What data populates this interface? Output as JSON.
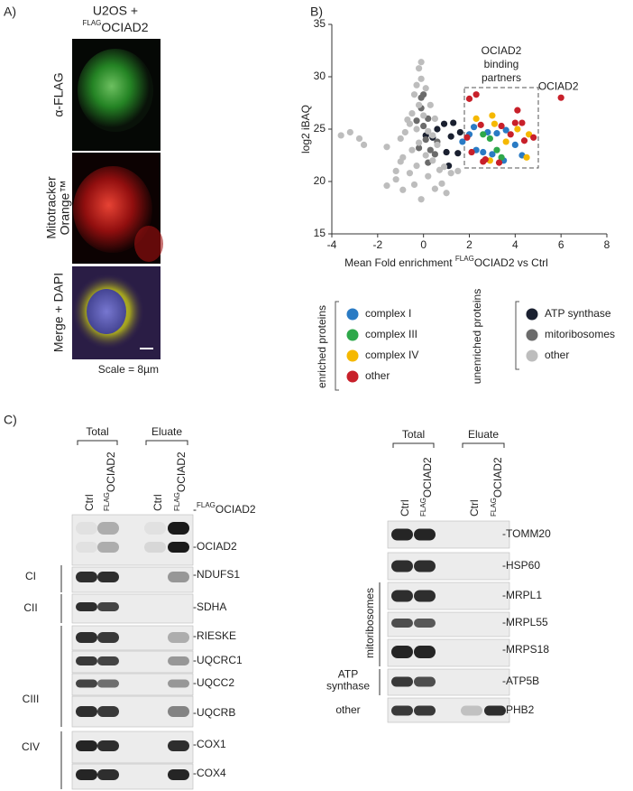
{
  "panel_a": {
    "label": "A)",
    "title_line1": "U2OS +",
    "title_sup": "FLAG",
    "title_main": "OCIAD2",
    "images": [
      [
        "α-FLAG"
      ],
      [
        "Mitotracker",
        "Orange™"
      ],
      [
        "Merge + DAPI"
      ]
    ],
    "scale": "Scale = 8µm"
  },
  "panel_b_label": "B)",
  "chart_data": {
    "type": "scatter",
    "ylabel": "log2 iBAQ",
    "xlabel": {
      "text": "Mean Fold enrichment ",
      "sup": "FLAG",
      "rest": "OCIAD2  vs Ctrl"
    },
    "xlim": [
      -4,
      8
    ],
    "ylim": [
      15,
      35
    ],
    "xticks": [
      -4,
      -2,
      0,
      2,
      4,
      6,
      8
    ],
    "yticks": [
      15,
      20,
      25,
      30,
      35
    ],
    "grid": false,
    "box_label": [
      "OCIAD2",
      "binding",
      "partners"
    ],
    "point_label": "OCIAD2",
    "series": [
      {
        "name": "complex I",
        "group": "enriched proteins",
        "color": "#2a7bc4",
        "x": [
          2.0,
          2.3,
          2.6,
          3.0,
          3.5,
          2.8,
          3.2,
          4.0,
          4.3,
          1.7,
          3.6,
          2.2
        ],
        "values": [
          24.5,
          23.0,
          22.8,
          22.6,
          22.0,
          24.7,
          24.6,
          23.5,
          22.5,
          23.8,
          24.9,
          25.2
        ]
      },
      {
        "name": "complex III",
        "group": "enriched proteins",
        "color": "#2ea84a",
        "x": [
          2.6,
          3.2,
          2.9,
          3.4
        ],
        "values": [
          24.5,
          23.0,
          24.1,
          22.3
        ]
      },
      {
        "name": "complex IV",
        "group": "enriched proteins",
        "color": "#f5b800",
        "x": [
          2.3,
          3.1,
          3.6,
          4.1,
          4.6,
          2.9,
          4.5,
          3.0
        ],
        "values": [
          26.0,
          25.5,
          23.8,
          25.0,
          24.5,
          22.0,
          22.3,
          26.3
        ]
      },
      {
        "name": "other",
        "group": "enriched proteins",
        "color": "#c8202a",
        "x": [
          6.0,
          2.0,
          2.3,
          4.1,
          4.0,
          4.3,
          3.4,
          2.5,
          1.9,
          2.7,
          3.3,
          4.8,
          4.4,
          2.1,
          3.8,
          2.6
        ],
        "values": [
          28.0,
          27.9,
          28.3,
          26.8,
          25.6,
          25.6,
          25.3,
          25.4,
          24.2,
          22.1,
          21.8,
          24.2,
          23.9,
          22.8,
          24.5,
          21.9
        ]
      },
      {
        "name": "ATP synthase",
        "group": "unenriched proteins",
        "color": "#1a2030",
        "x": [
          0.6,
          0.9,
          1.3,
          1.2,
          1.0,
          1.1,
          1.5,
          0.4,
          0.1,
          1.6
        ],
        "values": [
          25.0,
          25.5,
          25.6,
          24.3,
          22.8,
          21.5,
          22.7,
          24.2,
          24.4,
          24.7
        ]
      },
      {
        "name": "mitoribosomes",
        "group": "unenriched proteins",
        "color": "#6b6b6b",
        "x": [
          0.0,
          -0.1,
          0.2,
          0.1,
          -0.2,
          0.3,
          0.5,
          0.0,
          -0.3,
          0.6,
          0.2,
          -0.1
        ],
        "values": [
          28.3,
          27.0,
          26.0,
          24.0,
          23.2,
          23.0,
          22.6,
          25.3,
          25.8,
          23.8,
          21.8,
          28.0
        ]
      },
      {
        "name": "other",
        "group": "unenriched proteins",
        "color": "#bdbdbd",
        "x": [
          -0.1,
          -0.2,
          -0.1,
          -0.3,
          0.1,
          -0.4,
          -0.2,
          0.3,
          -0.5,
          0.0,
          -0.6,
          -0.3,
          0.2,
          -0.8,
          0.4,
          -1.0,
          -0.2,
          0.6,
          -0.5,
          0.1,
          -0.9,
          0.4,
          -0.3,
          0.7,
          -0.6,
          0.2,
          -1.2,
          -1.6,
          -0.4,
          0.5,
          1.0,
          -0.1,
          -2.8,
          -3.2,
          -3.6,
          -2.6,
          -1.6,
          -1.0,
          0.9,
          1.2,
          -0.7,
          0.5,
          -1.2,
          0.8,
          1.5,
          -0.9
        ],
        "values": [
          31.4,
          30.8,
          29.8,
          29.2,
          28.9,
          28.3,
          27.3,
          27.3,
          26.5,
          26.3,
          25.5,
          25.0,
          24.8,
          24.7,
          24.4,
          24.1,
          23.7,
          23.5,
          23.0,
          22.5,
          22.3,
          22.0,
          21.5,
          21.1,
          20.8,
          20.5,
          20.2,
          19.6,
          19.7,
          19.3,
          18.9,
          18.3,
          24.1,
          24.7,
          24.4,
          23.5,
          23.3,
          21.9,
          21.4,
          20.8,
          25.9,
          26.0,
          21.0,
          19.8,
          21.0,
          19.2
        ]
      }
    ]
  },
  "panel_c": {
    "label": "C)",
    "left": {
      "headers": [
        "Total",
        "Eluate"
      ],
      "lanes": [
        {
          "text": "Ctrl"
        },
        {
          "sup": "FLAG",
          "text": "OCIAD2"
        },
        {
          "text": "Ctrl"
        },
        {
          "sup": "FLAG",
          "text": "OCIAD2"
        }
      ],
      "bands": [
        {
          "pre": "-",
          "sup": "FLAG",
          "text": "OCIAD2"
        },
        {
          "text": "-OCIAD2"
        },
        {
          "text": "-NDUFS1"
        },
        {
          "text": "-SDHA"
        },
        {
          "text": "-RIESKE"
        },
        {
          "text": "-UQCRC1"
        },
        {
          "text": "-UQCC2"
        },
        {
          "text": "-UQCRB"
        },
        {
          "text": "-COX1"
        },
        {
          "text": "-COX4"
        }
      ],
      "groups": [
        [
          "CI"
        ],
        [
          "CII"
        ],
        [
          "CIII"
        ],
        [
          "CIV"
        ]
      ]
    },
    "right": {
      "headers": [
        "Total",
        "Eluate"
      ],
      "lanes": [
        {
          "text": "Ctrl"
        },
        {
          "sup": "FLAG",
          "text": "OCIAD2"
        },
        {
          "text": "Ctrl"
        },
        {
          "sup": "FLAG",
          "text": "OCIAD2"
        }
      ],
      "bands": [
        {
          "text": "-TOMM20"
        },
        {
          "text": "-HSP60"
        },
        {
          "text": "-MRPL1"
        },
        {
          "text": "-MRPL55"
        },
        {
          "text": "-MRPS18"
        },
        {
          "text": "-ATP5B"
        },
        {
          "text": "-PHB2"
        }
      ],
      "groups": [
        [
          "mitoribosomes"
        ],
        [
          "ATP",
          "synthase"
        ],
        [
          "other"
        ]
      ]
    }
  }
}
